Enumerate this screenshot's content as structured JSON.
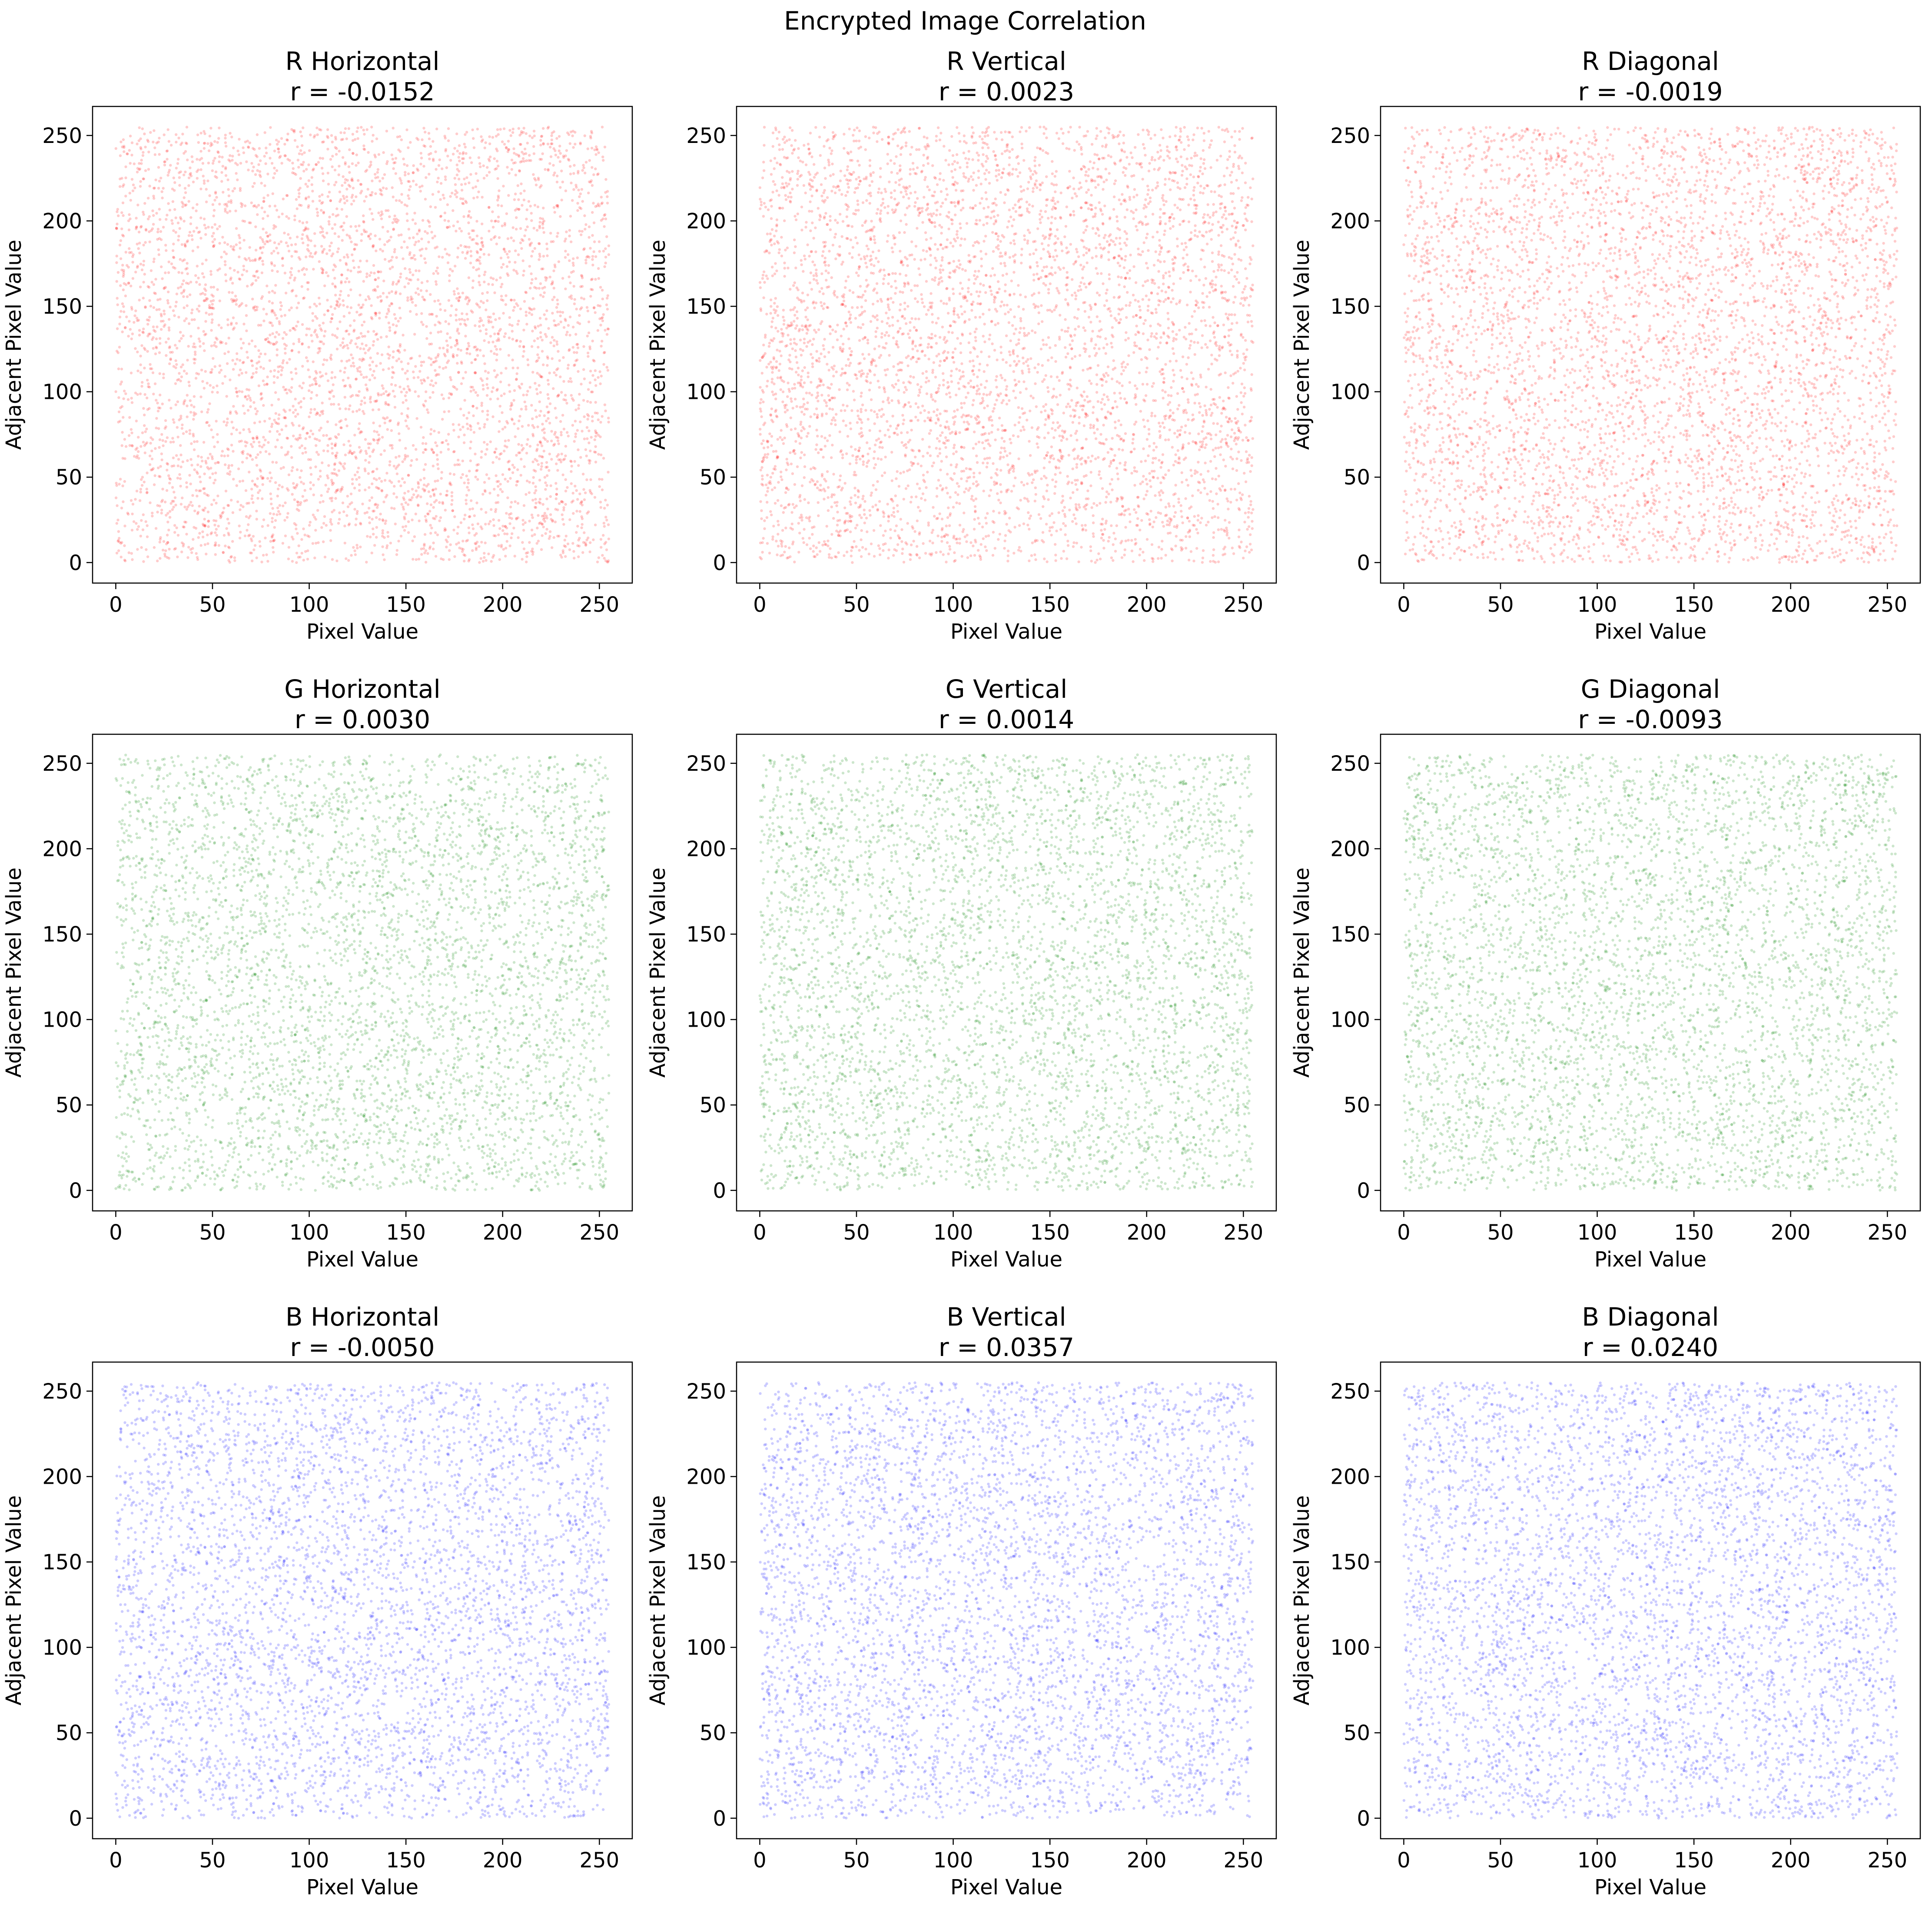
{
  "figure": {
    "suptitle": "Encrypted Image Correlation"
  },
  "chart_data": [
    {
      "type": "scatter",
      "title": "R Horizontal",
      "subtitle": "r = -0.0152",
      "xlabel": "Pixel Value",
      "ylabel": "Adjacent Pixel Value",
      "xlim": [
        -12,
        267
      ],
      "ylim": [
        -12,
        267
      ],
      "xticks": [
        0,
        50,
        100,
        150,
        200,
        250
      ],
      "yticks": [
        0,
        50,
        100,
        150,
        200,
        250
      ],
      "grid": false,
      "legend": "none",
      "color": "#ff0000",
      "point_count": 5000,
      "point_range": [
        0,
        255
      ],
      "seed": 11
    },
    {
      "type": "scatter",
      "title": "R Vertical",
      "subtitle": "r = 0.0023",
      "xlabel": "Pixel Value",
      "ylabel": "Adjacent Pixel Value",
      "xlim": [
        -12,
        267
      ],
      "ylim": [
        -12,
        267
      ],
      "xticks": [
        0,
        50,
        100,
        150,
        200,
        250
      ],
      "yticks": [
        0,
        50,
        100,
        150,
        200,
        250
      ],
      "grid": false,
      "legend": "none",
      "color": "#ff0000",
      "point_count": 5000,
      "point_range": [
        0,
        255
      ],
      "seed": 12
    },
    {
      "type": "scatter",
      "title": "R Diagonal",
      "subtitle": "r = -0.0019",
      "xlabel": "Pixel Value",
      "ylabel": "Adjacent Pixel Value",
      "xlim": [
        -12,
        267
      ],
      "ylim": [
        -12,
        267
      ],
      "xticks": [
        0,
        50,
        100,
        150,
        200,
        250
      ],
      "yticks": [
        0,
        50,
        100,
        150,
        200,
        250
      ],
      "grid": false,
      "legend": "none",
      "color": "#ff0000",
      "point_count": 5000,
      "point_range": [
        0,
        255
      ],
      "seed": 13
    },
    {
      "type": "scatter",
      "title": "G Horizontal",
      "subtitle": "r = 0.0030",
      "xlabel": "Pixel Value",
      "ylabel": "Adjacent Pixel Value",
      "xlim": [
        -12,
        267
      ],
      "ylim": [
        -12,
        267
      ],
      "xticks": [
        0,
        50,
        100,
        150,
        200,
        250
      ],
      "yticks": [
        0,
        50,
        100,
        150,
        200,
        250
      ],
      "grid": false,
      "legend": "none",
      "color": "#008000",
      "point_count": 5000,
      "point_range": [
        0,
        255
      ],
      "seed": 21
    },
    {
      "type": "scatter",
      "title": "G Vertical",
      "subtitle": "r = 0.0014",
      "xlabel": "Pixel Value",
      "ylabel": "Adjacent Pixel Value",
      "xlim": [
        -12,
        267
      ],
      "ylim": [
        -12,
        267
      ],
      "xticks": [
        0,
        50,
        100,
        150,
        200,
        250
      ],
      "yticks": [
        0,
        50,
        100,
        150,
        200,
        250
      ],
      "grid": false,
      "legend": "none",
      "color": "#008000",
      "point_count": 5000,
      "point_range": [
        0,
        255
      ],
      "seed": 22
    },
    {
      "type": "scatter",
      "title": "G Diagonal",
      "subtitle": "r = -0.0093",
      "xlabel": "Pixel Value",
      "ylabel": "Adjacent Pixel Value",
      "xlim": [
        -12,
        267
      ],
      "ylim": [
        -12,
        267
      ],
      "xticks": [
        0,
        50,
        100,
        150,
        200,
        250
      ],
      "yticks": [
        0,
        50,
        100,
        150,
        200,
        250
      ],
      "grid": false,
      "legend": "none",
      "color": "#008000",
      "point_count": 5000,
      "point_range": [
        0,
        255
      ],
      "seed": 23
    },
    {
      "type": "scatter",
      "title": "B Horizontal",
      "subtitle": "r = -0.0050",
      "xlabel": "Pixel Value",
      "ylabel": "Adjacent Pixel Value",
      "xlim": [
        -12,
        267
      ],
      "ylim": [
        -12,
        267
      ],
      "xticks": [
        0,
        50,
        100,
        150,
        200,
        250
      ],
      "yticks": [
        0,
        50,
        100,
        150,
        200,
        250
      ],
      "grid": false,
      "legend": "none",
      "color": "#0000ff",
      "point_count": 5000,
      "point_range": [
        0,
        255
      ],
      "seed": 31
    },
    {
      "type": "scatter",
      "title": "B Vertical",
      "subtitle": "r = 0.0357",
      "xlabel": "Pixel Value",
      "ylabel": "Adjacent Pixel Value",
      "xlim": [
        -12,
        267
      ],
      "ylim": [
        -12,
        267
      ],
      "xticks": [
        0,
        50,
        100,
        150,
        200,
        250
      ],
      "yticks": [
        0,
        50,
        100,
        150,
        200,
        250
      ],
      "grid": false,
      "legend": "none",
      "color": "#0000ff",
      "point_count": 5000,
      "point_range": [
        0,
        255
      ],
      "seed": 32
    },
    {
      "type": "scatter",
      "title": "B Diagonal",
      "subtitle": "r = 0.0240",
      "xlabel": "Pixel Value",
      "ylabel": "Adjacent Pixel Value",
      "xlim": [
        -12,
        267
      ],
      "ylim": [
        -12,
        267
      ],
      "xticks": [
        0,
        50,
        100,
        150,
        200,
        250
      ],
      "yticks": [
        0,
        50,
        100,
        150,
        200,
        250
      ],
      "grid": false,
      "legend": "none",
      "color": "#0000ff",
      "point_count": 5000,
      "point_range": [
        0,
        255
      ],
      "seed": 33
    }
  ]
}
